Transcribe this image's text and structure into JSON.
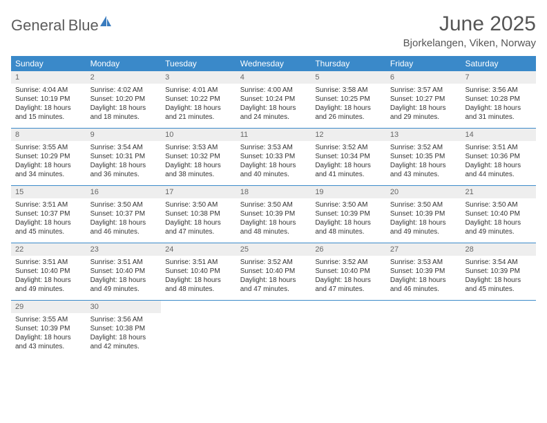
{
  "logo": {
    "line1": "General",
    "line2": "Blue"
  },
  "title": "June 2025",
  "location": "Bjorkelangen, Viken, Norway",
  "colors": {
    "header_bg": "#3a89c9",
    "header_text": "#ffffff",
    "daynum_bg": "#eeeeee",
    "daynum_text": "#666666",
    "body_text": "#333333",
    "title_text": "#555555",
    "border": "#3a89c9"
  },
  "daysOfWeek": [
    "Sunday",
    "Monday",
    "Tuesday",
    "Wednesday",
    "Thursday",
    "Friday",
    "Saturday"
  ],
  "weeks": [
    [
      {
        "n": "1",
        "sr": "4:04 AM",
        "ss": "10:19 PM",
        "dl": "18 hours and 15 minutes."
      },
      {
        "n": "2",
        "sr": "4:02 AM",
        "ss": "10:20 PM",
        "dl": "18 hours and 18 minutes."
      },
      {
        "n": "3",
        "sr": "4:01 AM",
        "ss": "10:22 PM",
        "dl": "18 hours and 21 minutes."
      },
      {
        "n": "4",
        "sr": "4:00 AM",
        "ss": "10:24 PM",
        "dl": "18 hours and 24 minutes."
      },
      {
        "n": "5",
        "sr": "3:58 AM",
        "ss": "10:25 PM",
        "dl": "18 hours and 26 minutes."
      },
      {
        "n": "6",
        "sr": "3:57 AM",
        "ss": "10:27 PM",
        "dl": "18 hours and 29 minutes."
      },
      {
        "n": "7",
        "sr": "3:56 AM",
        "ss": "10:28 PM",
        "dl": "18 hours and 31 minutes."
      }
    ],
    [
      {
        "n": "8",
        "sr": "3:55 AM",
        "ss": "10:29 PM",
        "dl": "18 hours and 34 minutes."
      },
      {
        "n": "9",
        "sr": "3:54 AM",
        "ss": "10:31 PM",
        "dl": "18 hours and 36 minutes."
      },
      {
        "n": "10",
        "sr": "3:53 AM",
        "ss": "10:32 PM",
        "dl": "18 hours and 38 minutes."
      },
      {
        "n": "11",
        "sr": "3:53 AM",
        "ss": "10:33 PM",
        "dl": "18 hours and 40 minutes."
      },
      {
        "n": "12",
        "sr": "3:52 AM",
        "ss": "10:34 PM",
        "dl": "18 hours and 41 minutes."
      },
      {
        "n": "13",
        "sr": "3:52 AM",
        "ss": "10:35 PM",
        "dl": "18 hours and 43 minutes."
      },
      {
        "n": "14",
        "sr": "3:51 AM",
        "ss": "10:36 PM",
        "dl": "18 hours and 44 minutes."
      }
    ],
    [
      {
        "n": "15",
        "sr": "3:51 AM",
        "ss": "10:37 PM",
        "dl": "18 hours and 45 minutes."
      },
      {
        "n": "16",
        "sr": "3:50 AM",
        "ss": "10:37 PM",
        "dl": "18 hours and 46 minutes."
      },
      {
        "n": "17",
        "sr": "3:50 AM",
        "ss": "10:38 PM",
        "dl": "18 hours and 47 minutes."
      },
      {
        "n": "18",
        "sr": "3:50 AM",
        "ss": "10:39 PM",
        "dl": "18 hours and 48 minutes."
      },
      {
        "n": "19",
        "sr": "3:50 AM",
        "ss": "10:39 PM",
        "dl": "18 hours and 48 minutes."
      },
      {
        "n": "20",
        "sr": "3:50 AM",
        "ss": "10:39 PM",
        "dl": "18 hours and 49 minutes."
      },
      {
        "n": "21",
        "sr": "3:50 AM",
        "ss": "10:40 PM",
        "dl": "18 hours and 49 minutes."
      }
    ],
    [
      {
        "n": "22",
        "sr": "3:51 AM",
        "ss": "10:40 PM",
        "dl": "18 hours and 49 minutes."
      },
      {
        "n": "23",
        "sr": "3:51 AM",
        "ss": "10:40 PM",
        "dl": "18 hours and 49 minutes."
      },
      {
        "n": "24",
        "sr": "3:51 AM",
        "ss": "10:40 PM",
        "dl": "18 hours and 48 minutes."
      },
      {
        "n": "25",
        "sr": "3:52 AM",
        "ss": "10:40 PM",
        "dl": "18 hours and 47 minutes."
      },
      {
        "n": "26",
        "sr": "3:52 AM",
        "ss": "10:40 PM",
        "dl": "18 hours and 47 minutes."
      },
      {
        "n": "27",
        "sr": "3:53 AM",
        "ss": "10:39 PM",
        "dl": "18 hours and 46 minutes."
      },
      {
        "n": "28",
        "sr": "3:54 AM",
        "ss": "10:39 PM",
        "dl": "18 hours and 45 minutes."
      }
    ],
    [
      {
        "n": "29",
        "sr": "3:55 AM",
        "ss": "10:39 PM",
        "dl": "18 hours and 43 minutes."
      },
      {
        "n": "30",
        "sr": "3:56 AM",
        "ss": "10:38 PM",
        "dl": "18 hours and 42 minutes."
      },
      null,
      null,
      null,
      null,
      null
    ]
  ],
  "labels": {
    "sunrise": "Sunrise:",
    "sunset": "Sunset:",
    "daylight": "Daylight:"
  }
}
